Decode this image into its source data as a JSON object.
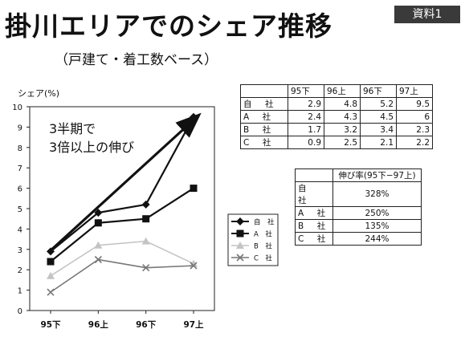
{
  "header": {
    "title": "掛川エリアでのシェア推移",
    "subtitle": "（戸建て・着工数ベース）",
    "badge": "資料1"
  },
  "annotation": [
    "3半期で",
    "3倍以上の伸び"
  ],
  "chart_data": {
    "type": "line",
    "ylabel": "シェア(%)",
    "categories": [
      "95下",
      "96上",
      "96下",
      "97上"
    ],
    "ylim": [
      0,
      10
    ],
    "yticks": [
      0,
      1,
      2,
      3,
      4,
      5,
      6,
      7,
      8,
      9,
      10
    ],
    "series": [
      {
        "name": "自　社",
        "values": [
          2.9,
          4.8,
          5.2,
          9.5
        ],
        "color": "#111111",
        "marker": "diamond"
      },
      {
        "name": "A　社",
        "values": [
          2.4,
          4.3,
          4.5,
          6
        ],
        "color": "#111111",
        "marker": "square"
      },
      {
        "name": "B　社",
        "values": [
          1.7,
          3.2,
          3.4,
          2.3
        ],
        "color": "#c4c4c4",
        "marker": "triangle"
      },
      {
        "name": "C　社",
        "values": [
          0.9,
          2.5,
          2.1,
          2.2
        ],
        "color": "#777777",
        "marker": "x"
      }
    ],
    "grid": false,
    "legend": "right"
  },
  "share_table": {
    "columns": [
      "95下",
      "96上",
      "96下",
      "97上"
    ],
    "rows": [
      {
        "label": "自　社",
        "values": [
          "2.9",
          "4.8",
          "5.2",
          "9.5"
        ]
      },
      {
        "label": "A　社",
        "values": [
          "2.4",
          "4.3",
          "4.5",
          "6"
        ]
      },
      {
        "label": "B　社",
        "values": [
          "1.7",
          "3.2",
          "3.4",
          "2.3"
        ]
      },
      {
        "label": "C　社",
        "values": [
          "0.9",
          "2.5",
          "2.1",
          "2.2"
        ]
      }
    ]
  },
  "growth_table": {
    "header": "伸び率(95下−97上)",
    "rows": [
      {
        "label": "自　社",
        "value": "328%"
      },
      {
        "label": "A　社",
        "value": "250%"
      },
      {
        "label": "B　社",
        "value": "135%"
      },
      {
        "label": "C　社",
        "value": "244%"
      }
    ]
  }
}
